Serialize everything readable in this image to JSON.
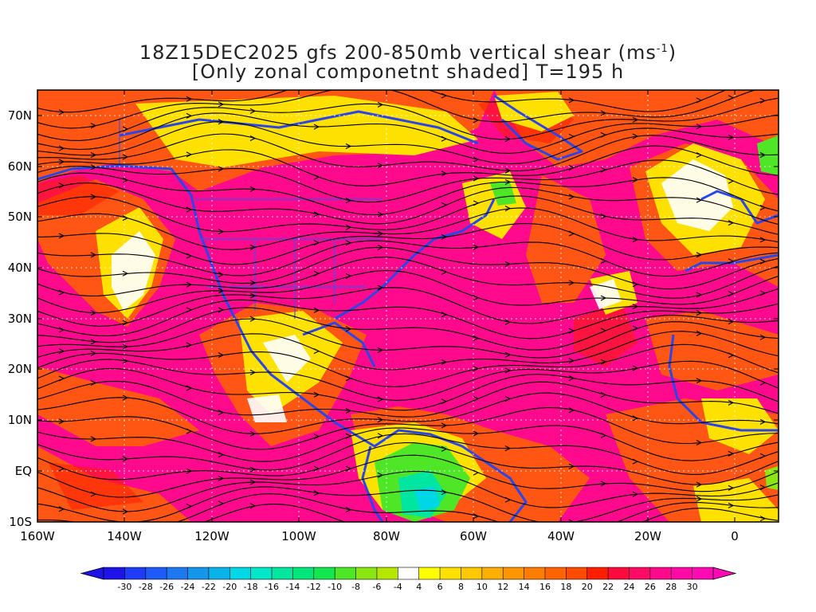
{
  "title": {
    "line1_main": "18Z15DEC2025 gfs 200-850mb vertical shear (ms",
    "line1_sup": "-1",
    "line1_end": ")",
    "line2": "[Only zonal componetnt shaded] T=195 h"
  },
  "map": {
    "lat_labels": [
      "70N",
      "60N",
      "50N",
      "40N",
      "30N",
      "20N",
      "10N",
      "EQ",
      "10S"
    ],
    "lon_labels": [
      "160W",
      "140W",
      "120W",
      "100W",
      "80W",
      "60W",
      "40W",
      "20W",
      "0"
    ],
    "lat_range": [
      -10,
      75
    ],
    "lon_range": [
      -160,
      10
    ]
  },
  "colorbar": {
    "labels": [
      "-30",
      "-28",
      "-26",
      "-24",
      "-22",
      "-20",
      "-18",
      "-16",
      "-14",
      "-12",
      "-10",
      "-8",
      "-6",
      "-4",
      "4",
      "6",
      "8",
      "10",
      "12",
      "14",
      "16",
      "18",
      "20",
      "22",
      "24",
      "26",
      "28",
      "30"
    ],
    "colors": [
      "#1e14e8",
      "#1e3cf5",
      "#1e5af5",
      "#1e78f0",
      "#1496eb",
      "#0ab4eb",
      "#00d7e6",
      "#00e6c8",
      "#00e6a0",
      "#00e678",
      "#14e650",
      "#50e628",
      "#8ce614",
      "#b4e600",
      "#ffffff",
      "#ffff00",
      "#ffe100",
      "#ffc800",
      "#ffaf00",
      "#ff9600",
      "#ff7d00",
      "#ff6400",
      "#ff4b00",
      "#ff1e00",
      "#ff0a3c",
      "#ff0a64",
      "#ff0a8c",
      "#ff0aa5",
      "#ff0ab4"
    ]
  }
}
